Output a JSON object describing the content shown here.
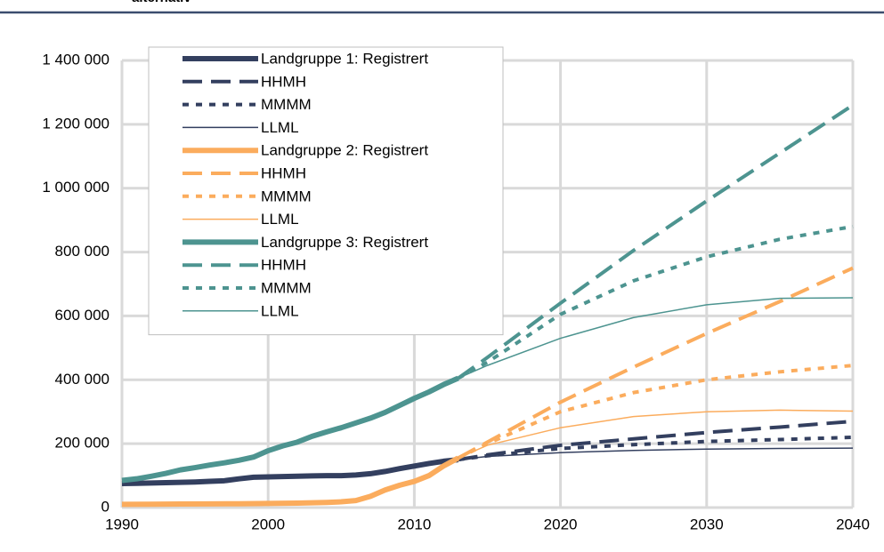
{
  "chart_data": {
    "type": "line",
    "title": "alternativ",
    "xlim": [
      1990,
      2040
    ],
    "xticks": [
      1990,
      2000,
      2010,
      2020,
      2030,
      2040
    ],
    "ylim": [
      0,
      1400000
    ],
    "yticks": [
      0,
      {
        "value": 200000,
        "label": "200 000"
      },
      {
        "value": 400000,
        "label": "400 000"
      },
      {
        "value": 600000,
        "label": "600 000"
      },
      {
        "value": 800000,
        "label": "800 000"
      },
      {
        "value": 1000000,
        "label": "1 000 000"
      },
      {
        "value": 1200000,
        "label": "1 200 000"
      },
      {
        "value": 1400000,
        "label": "1 400 000"
      }
    ],
    "grid": true,
    "legend": "top-left",
    "series": [
      {
        "name": "Landgruppe 1: Registrert",
        "color": "#333f5f",
        "style": "solid",
        "x": [
          1990,
          1991,
          1992,
          1993,
          1994,
          1995,
          1996,
          1997,
          1998,
          1999,
          2000,
          2001,
          2002,
          2003,
          2004,
          2005,
          2006,
          2007,
          2008,
          2009,
          2010,
          2011,
          2012,
          2013
        ],
        "values": [
          75000,
          76000,
          77000,
          78000,
          79000,
          80000,
          82000,
          84000,
          90000,
          95000,
          96000,
          97000,
          98000,
          99000,
          100000,
          100000,
          102000,
          106000,
          113000,
          122000,
          130000,
          138000,
          145000,
          150000
        ]
      },
      {
        "name": "HHMH",
        "color": "#333f5f",
        "style": "dashed",
        "x": [
          2013,
          2015,
          2020,
          2025,
          2030,
          2035,
          2040
        ],
        "values": [
          150000,
          165000,
          195000,
          215000,
          235000,
          252000,
          270000
        ]
      },
      {
        "name": "MMMM",
        "color": "#333f5f",
        "style": "dotted",
        "x": [
          2013,
          2015,
          2020,
          2025,
          2030,
          2035,
          2040
        ],
        "values": [
          150000,
          162000,
          185000,
          197000,
          207000,
          213000,
          220000
        ]
      },
      {
        "name": "LLML",
        "color": "#333f5f",
        "style": "thin",
        "x": [
          2013,
          2015,
          2020,
          2025,
          2030,
          2035,
          2040
        ],
        "values": [
          150000,
          160000,
          172000,
          179000,
          183000,
          185000,
          186000
        ]
      },
      {
        "name": "Landgruppe 2: Registrert",
        "color": "#fbac5d",
        "style": "solid",
        "x": [
          1990,
          1992,
          1994,
          1996,
          1998,
          2000,
          2002,
          2004,
          2005,
          2006,
          2007,
          2008,
          2009,
          2010,
          2011,
          2012,
          2013
        ],
        "values": [
          10000,
          10500,
          11000,
          11500,
          12000,
          13000,
          14000,
          16000,
          18000,
          22000,
          35000,
          55000,
          70000,
          82000,
          100000,
          130000,
          155000
        ]
      },
      {
        "name": "HHMH",
        "color": "#fbac5d",
        "style": "dashed",
        "x": [
          2013,
          2015,
          2020,
          2025,
          2030,
          2035,
          2040
        ],
        "values": [
          155000,
          205000,
          330000,
          440000,
          545000,
          645000,
          750000
        ]
      },
      {
        "name": "MMMM",
        "color": "#fbac5d",
        "style": "dotted",
        "x": [
          2013,
          2015,
          2020,
          2025,
          2030,
          2035,
          2040
        ],
        "values": [
          155000,
          200000,
          300000,
          360000,
          400000,
          425000,
          445000
        ]
      },
      {
        "name": "LLML",
        "color": "#fbac5d",
        "style": "thin",
        "x": [
          2013,
          2015,
          2020,
          2025,
          2030,
          2035,
          2040
        ],
        "values": [
          155000,
          195000,
          250000,
          285000,
          300000,
          305000,
          302000
        ]
      },
      {
        "name": "Landgruppe 3: Registrert",
        "color": "#4d9490",
        "style": "solid",
        "x": [
          1990,
          1991,
          1992,
          1993,
          1994,
          1995,
          1996,
          1997,
          1998,
          1999,
          2000,
          2001,
          2002,
          2003,
          2004,
          2005,
          2006,
          2007,
          2008,
          2009,
          2010,
          2011,
          2012,
          2013
        ],
        "values": [
          85000,
          90000,
          98000,
          107000,
          118000,
          125000,
          133000,
          140000,
          148000,
          158000,
          178000,
          193000,
          205000,
          223000,
          237000,
          250000,
          265000,
          280000,
          298000,
          320000,
          342000,
          362000,
          385000,
          405000
        ]
      },
      {
        "name": "HHMH",
        "color": "#4d9490",
        "style": "dashed",
        "x": [
          2013,
          2015,
          2020,
          2025,
          2030,
          2035,
          2040
        ],
        "values": [
          405000,
          470000,
          640000,
          805000,
          960000,
          1110000,
          1260000
        ]
      },
      {
        "name": "MMMM",
        "color": "#4d9490",
        "style": "dotted",
        "x": [
          2013,
          2015,
          2020,
          2025,
          2030,
          2035,
          2040
        ],
        "values": [
          405000,
          455000,
          605000,
          710000,
          785000,
          840000,
          880000
        ]
      },
      {
        "name": "LLML",
        "color": "#4d9490",
        "style": "thin",
        "x": [
          2013,
          2015,
          2020,
          2025,
          2030,
          2035,
          2040
        ],
        "values": [
          405000,
          445000,
          530000,
          595000,
          635000,
          655000,
          657000
        ]
      }
    ]
  }
}
